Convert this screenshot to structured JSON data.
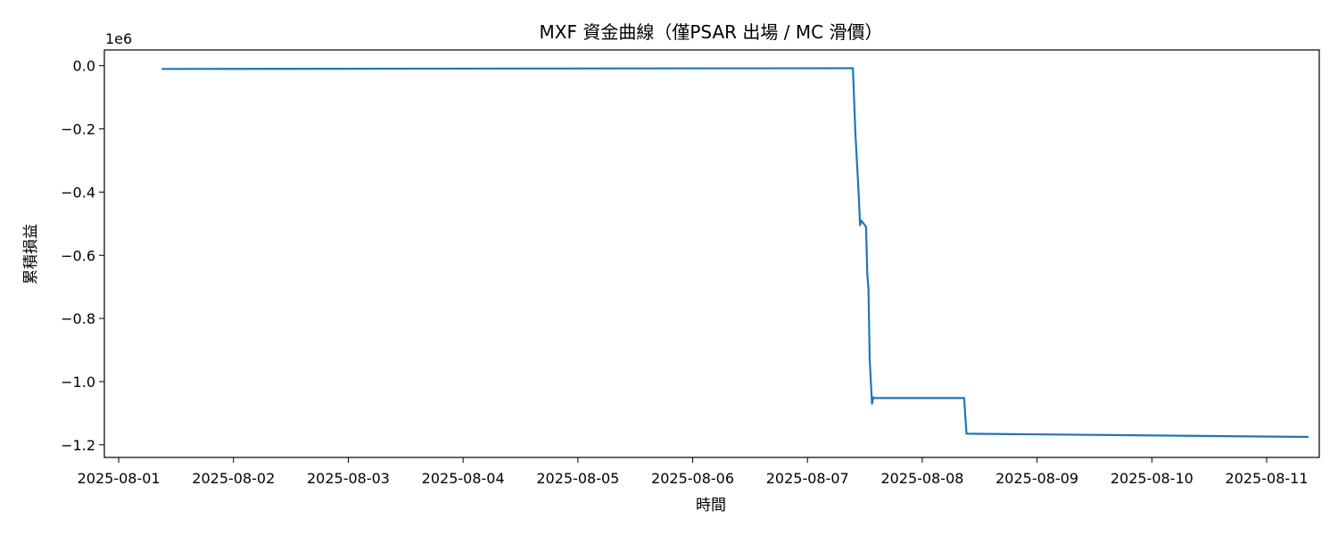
{
  "chart_data": {
    "type": "line",
    "title": "MXF 資金曲線（僅PSAR 出場 / MC 滑價）",
    "xlabel": "時間",
    "ylabel": "累積損益",
    "y_offset_label": "1e6",
    "x_tick_labels": [
      "2025-08-01",
      "2025-08-02",
      "2025-08-03",
      "2025-08-04",
      "2025-08-05",
      "2025-08-06",
      "2025-08-07",
      "2025-08-08",
      "2025-08-09",
      "2025-08-10",
      "2025-08-11"
    ],
    "y_tick_labels": [
      "0.0",
      "−0.2",
      "−0.4",
      "−0.6",
      "−0.8",
      "−1.0",
      "−1.2"
    ],
    "y_ticks": [
      0.0,
      -0.2,
      -0.4,
      -0.6,
      -0.8,
      -1.0,
      -1.2
    ],
    "xlim": [
      "2025-07-31T21:00",
      "2025-08-11T11:00"
    ],
    "ylim": [
      -1.24,
      0.05
    ],
    "grid": false,
    "line_color": "#1f77b4",
    "series": [
      {
        "x": [
          "2025-08-01T09:00",
          "2025-08-07T09:00",
          "2025-08-07T09:30",
          "2025-08-07T10:00",
          "2025-08-07T10:45",
          "2025-08-07T11:00",
          "2025-08-07T11:15",
          "2025-08-07T12:15",
          "2025-08-07T12:30",
          "2025-08-07T12:45",
          "2025-08-07T13:00",
          "2025-08-07T13:30",
          "2025-08-07T13:45",
          "2025-08-07T14:00",
          "2025-08-07T15:00",
          "2025-08-08T08:45",
          "2025-08-08T09:00",
          "2025-08-08T09:15",
          "2025-08-11T08:45"
        ],
        "values": [
          -0.01,
          -0.008,
          -0.008,
          -0.21,
          -0.42,
          -0.505,
          -0.49,
          -0.51,
          -0.66,
          -0.705,
          -0.93,
          -1.07,
          -1.05,
          -1.052,
          -1.052,
          -1.052,
          -1.11,
          -1.165,
          -1.175
        ]
      }
    ]
  }
}
